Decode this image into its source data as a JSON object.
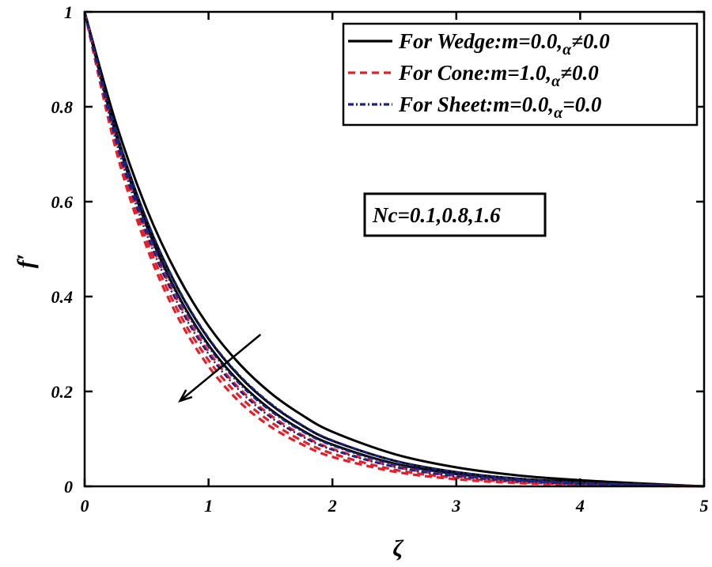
{
  "chart_data": {
    "type": "line",
    "xlabel": "ζ",
    "ylabel": "f′",
    "xlim": [
      0,
      5
    ],
    "ylim": [
      0,
      1
    ],
    "x_ticks": [
      "0",
      "1",
      "2",
      "3",
      "4",
      "5"
    ],
    "y_ticks": [
      "0",
      "0.2",
      "0.4",
      "0.6",
      "0.8",
      "1"
    ],
    "grid": false,
    "legend_position": "top-right",
    "legend": [
      {
        "label_main": "For Wedge:m=0.0,",
        "label_alpha": "α",
        "label_tail": "≠0.0",
        "color": "#000000",
        "dash": "solid"
      },
      {
        "label_main": "For Cone:m=1.0,",
        "label_alpha": "α",
        "label_tail": "≠0.0",
        "color": "#e0202a",
        "dash": "dashed"
      },
      {
        "label_main": "For Sheet:m=0.0,",
        "label_alpha": "α",
        "label_tail": "=0.0",
        "color": "#1a237e",
        "dash": "dashdot"
      }
    ],
    "annotation": "Nc=0.1,0.8,1.6",
    "x": [
      0,
      0.25,
      0.5,
      0.75,
      1,
      1.25,
      1.5,
      1.75,
      2,
      2.5,
      3,
      3.5,
      4,
      4.5,
      5
    ],
    "series": [
      {
        "group": "wedge",
        "values": [
          1.0,
          0.768,
          0.585,
          0.445,
          0.338,
          0.258,
          0.197,
          0.151,
          0.115,
          0.068,
          0.04,
          0.023,
          0.013,
          0.006,
          0.0
        ]
      },
      {
        "group": "wedge",
        "values": [
          1.0,
          0.751,
          0.561,
          0.418,
          0.311,
          0.232,
          0.173,
          0.129,
          0.096,
          0.054,
          0.03,
          0.016,
          0.009,
          0.004,
          0.0
        ]
      },
      {
        "group": "wedge",
        "values": [
          1.0,
          0.743,
          0.549,
          0.405,
          0.298,
          0.22,
          0.162,
          0.119,
          0.088,
          0.048,
          0.026,
          0.014,
          0.007,
          0.003,
          0.0
        ]
      },
      {
        "group": "cone",
        "values": [
          1.0,
          0.735,
          0.537,
          0.391,
          0.284,
          0.206,
          0.15,
          0.109,
          0.079,
          0.042,
          0.022,
          0.012,
          0.006,
          0.003,
          0.0
        ]
      },
      {
        "group": "cone",
        "values": [
          1.0,
          0.722,
          0.519,
          0.372,
          0.266,
          0.19,
          0.136,
          0.097,
          0.069,
          0.035,
          0.018,
          0.009,
          0.004,
          0.002,
          0.0
        ]
      },
      {
        "group": "cone",
        "values": [
          1.0,
          0.712,
          0.505,
          0.358,
          0.253,
          0.178,
          0.126,
          0.089,
          0.062,
          0.031,
          0.015,
          0.007,
          0.003,
          0.001,
          0.0
        ]
      },
      {
        "group": "sheet",
        "values": [
          1.0,
          0.752,
          0.563,
          0.42,
          0.313,
          0.234,
          0.175,
          0.13,
          0.097,
          0.054,
          0.03,
          0.016,
          0.008,
          0.004,
          0.0
        ]
      },
      {
        "group": "sheet",
        "values": [
          1.0,
          0.74,
          0.545,
          0.401,
          0.294,
          0.216,
          0.159,
          0.117,
          0.086,
          0.046,
          0.025,
          0.013,
          0.006,
          0.003,
          0.0
        ]
      },
      {
        "group": "sheet",
        "values": [
          1.0,
          0.731,
          0.532,
          0.386,
          0.279,
          0.202,
          0.146,
          0.106,
          0.077,
          0.041,
          0.021,
          0.011,
          0.005,
          0.002,
          0.0
        ]
      }
    ],
    "trend_arrow": {
      "from": [
        1.42,
        0.32
      ],
      "to": [
        0.77,
        0.18
      ]
    }
  }
}
